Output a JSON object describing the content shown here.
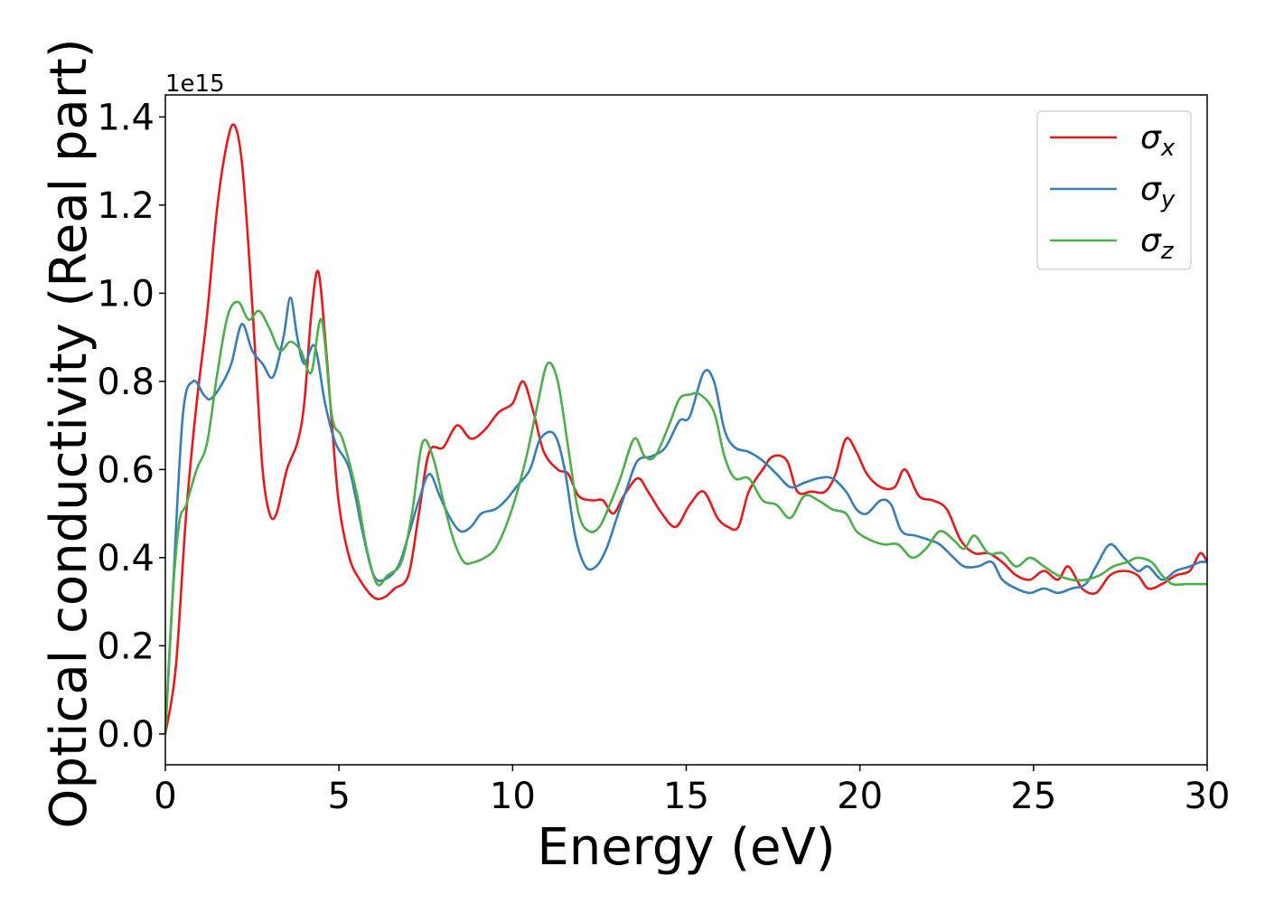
{
  "chart_data": {
    "type": "line",
    "xlabel": "Energy (eV)",
    "ylabel": "Optical conductivity (Real part)",
    "y_offset_text": "1e15",
    "xlim": [
      0,
      30
    ],
    "ylim": [
      -0.07,
      1.45
    ],
    "x_ticks": [
      0,
      5,
      10,
      15,
      20,
      25,
      30
    ],
    "x_tick_labels": [
      "0",
      "5",
      "10",
      "15",
      "20",
      "25",
      "30"
    ],
    "y_ticks": [
      0.0,
      0.2,
      0.4,
      0.6,
      0.8,
      1.0,
      1.2,
      1.4
    ],
    "y_tick_labels": [
      "0.0",
      "0.2",
      "0.4",
      "0.6",
      "0.8",
      "1.0",
      "1.2",
      "1.4"
    ],
    "grid": false,
    "legend_position": "top-right",
    "series": [
      {
        "name": "σx",
        "name_base": "σ",
        "name_sub": "x",
        "color": "#e41a1c",
        "points": [
          [
            0,
            0
          ],
          [
            0.3,
            0.15
          ],
          [
            0.6,
            0.5
          ],
          [
            0.9,
            0.75
          ],
          [
            1.2,
            0.95
          ],
          [
            1.5,
            1.2
          ],
          [
            1.8,
            1.35
          ],
          [
            2.0,
            1.38
          ],
          [
            2.2,
            1.3
          ],
          [
            2.4,
            1.1
          ],
          [
            2.6,
            0.85
          ],
          [
            2.8,
            0.6
          ],
          [
            3.0,
            0.5
          ],
          [
            3.2,
            0.5
          ],
          [
            3.5,
            0.6
          ],
          [
            3.8,
            0.66
          ],
          [
            4.0,
            0.75
          ],
          [
            4.2,
            0.95
          ],
          [
            4.4,
            1.05
          ],
          [
            4.6,
            0.9
          ],
          [
            4.8,
            0.7
          ],
          [
            5.0,
            0.52
          ],
          [
            5.3,
            0.4
          ],
          [
            5.6,
            0.35
          ],
          [
            6.0,
            0.31
          ],
          [
            6.3,
            0.31
          ],
          [
            6.6,
            0.33
          ],
          [
            7.0,
            0.36
          ],
          [
            7.3,
            0.5
          ],
          [
            7.6,
            0.64
          ],
          [
            8.0,
            0.65
          ],
          [
            8.4,
            0.7
          ],
          [
            8.8,
            0.67
          ],
          [
            9.2,
            0.69
          ],
          [
            9.6,
            0.73
          ],
          [
            10.0,
            0.75
          ],
          [
            10.3,
            0.8
          ],
          [
            10.6,
            0.73
          ],
          [
            10.9,
            0.64
          ],
          [
            11.3,
            0.6
          ],
          [
            11.6,
            0.59
          ],
          [
            11.9,
            0.54
          ],
          [
            12.3,
            0.53
          ],
          [
            12.6,
            0.53
          ],
          [
            12.9,
            0.5
          ],
          [
            13.2,
            0.54
          ],
          [
            13.6,
            0.58
          ],
          [
            13.9,
            0.55
          ],
          [
            14.3,
            0.5
          ],
          [
            14.7,
            0.47
          ],
          [
            15.1,
            0.52
          ],
          [
            15.5,
            0.55
          ],
          [
            15.9,
            0.49
          ],
          [
            16.2,
            0.47
          ],
          [
            16.5,
            0.47
          ],
          [
            16.8,
            0.55
          ],
          [
            17.2,
            0.6
          ],
          [
            17.5,
            0.63
          ],
          [
            17.9,
            0.62
          ],
          [
            18.2,
            0.55
          ],
          [
            18.6,
            0.55
          ],
          [
            19.0,
            0.55
          ],
          [
            19.3,
            0.59
          ],
          [
            19.6,
            0.67
          ],
          [
            19.9,
            0.64
          ],
          [
            20.2,
            0.59
          ],
          [
            20.6,
            0.56
          ],
          [
            21.0,
            0.56
          ],
          [
            21.3,
            0.6
          ],
          [
            21.7,
            0.54
          ],
          [
            22.1,
            0.53
          ],
          [
            22.5,
            0.51
          ],
          [
            22.9,
            0.44
          ],
          [
            23.3,
            0.41
          ],
          [
            23.7,
            0.41
          ],
          [
            24.1,
            0.39
          ],
          [
            24.5,
            0.36
          ],
          [
            24.9,
            0.35
          ],
          [
            25.3,
            0.37
          ],
          [
            25.7,
            0.35
          ],
          [
            26.0,
            0.38
          ],
          [
            26.4,
            0.33
          ],
          [
            26.8,
            0.32
          ],
          [
            27.2,
            0.36
          ],
          [
            27.6,
            0.37
          ],
          [
            28.0,
            0.36
          ],
          [
            28.3,
            0.33
          ],
          [
            28.7,
            0.34
          ],
          [
            29.1,
            0.36
          ],
          [
            29.5,
            0.37
          ],
          [
            29.8,
            0.41
          ],
          [
            30.0,
            0.39
          ]
        ]
      },
      {
        "name": "σy",
        "name_base": "σ",
        "name_sub": "y",
        "color": "#377eb8",
        "points": [
          [
            0,
            0
          ],
          [
            0.2,
            0.3
          ],
          [
            0.5,
            0.72
          ],
          [
            0.8,
            0.8
          ],
          [
            1.1,
            0.77
          ],
          [
            1.3,
            0.76
          ],
          [
            1.6,
            0.79
          ],
          [
            1.9,
            0.84
          ],
          [
            2.2,
            0.93
          ],
          [
            2.5,
            0.87
          ],
          [
            2.8,
            0.84
          ],
          [
            3.1,
            0.81
          ],
          [
            3.4,
            0.9
          ],
          [
            3.6,
            0.99
          ],
          [
            3.8,
            0.9
          ],
          [
            4.0,
            0.84
          ],
          [
            4.3,
            0.88
          ],
          [
            4.6,
            0.75
          ],
          [
            4.9,
            0.66
          ],
          [
            5.3,
            0.6
          ],
          [
            5.7,
            0.45
          ],
          [
            6.0,
            0.36
          ],
          [
            6.3,
            0.35
          ],
          [
            6.7,
            0.38
          ],
          [
            7.0,
            0.45
          ],
          [
            7.3,
            0.53
          ],
          [
            7.6,
            0.59
          ],
          [
            7.9,
            0.54
          ],
          [
            8.2,
            0.49
          ],
          [
            8.5,
            0.46
          ],
          [
            8.8,
            0.47
          ],
          [
            9.1,
            0.5
          ],
          [
            9.5,
            0.51
          ],
          [
            9.8,
            0.53
          ],
          [
            10.1,
            0.56
          ],
          [
            10.5,
            0.6
          ],
          [
            10.8,
            0.67
          ],
          [
            11.2,
            0.68
          ],
          [
            11.5,
            0.6
          ],
          [
            11.8,
            0.45
          ],
          [
            12.1,
            0.38
          ],
          [
            12.4,
            0.38
          ],
          [
            12.7,
            0.42
          ],
          [
            13.0,
            0.49
          ],
          [
            13.3,
            0.56
          ],
          [
            13.6,
            0.62
          ],
          [
            14.0,
            0.63
          ],
          [
            14.4,
            0.65
          ],
          [
            14.8,
            0.71
          ],
          [
            15.1,
            0.72
          ],
          [
            15.5,
            0.82
          ],
          [
            15.8,
            0.8
          ],
          [
            16.1,
            0.69
          ],
          [
            16.4,
            0.65
          ],
          [
            16.8,
            0.64
          ],
          [
            17.2,
            0.62
          ],
          [
            17.6,
            0.59
          ],
          [
            18.0,
            0.56
          ],
          [
            18.4,
            0.57
          ],
          [
            18.8,
            0.58
          ],
          [
            19.2,
            0.58
          ],
          [
            19.6,
            0.55
          ],
          [
            19.9,
            0.51
          ],
          [
            20.2,
            0.5
          ],
          [
            20.6,
            0.53
          ],
          [
            20.9,
            0.52
          ],
          [
            21.2,
            0.46
          ],
          [
            21.6,
            0.45
          ],
          [
            22.0,
            0.44
          ],
          [
            22.3,
            0.43
          ],
          [
            22.7,
            0.4
          ],
          [
            23.0,
            0.38
          ],
          [
            23.4,
            0.38
          ],
          [
            23.8,
            0.39
          ],
          [
            24.1,
            0.35
          ],
          [
            24.5,
            0.33
          ],
          [
            24.9,
            0.32
          ],
          [
            25.3,
            0.33
          ],
          [
            25.7,
            0.32
          ],
          [
            26.1,
            0.33
          ],
          [
            26.5,
            0.34
          ],
          [
            26.8,
            0.38
          ],
          [
            27.2,
            0.43
          ],
          [
            27.6,
            0.4
          ],
          [
            28.0,
            0.37
          ],
          [
            28.3,
            0.38
          ],
          [
            28.7,
            0.35
          ],
          [
            29.1,
            0.37
          ],
          [
            29.5,
            0.38
          ],
          [
            29.8,
            0.39
          ],
          [
            30.0,
            0.39
          ]
        ]
      },
      {
        "name": "σz",
        "name_base": "σ",
        "name_sub": "z",
        "color": "#4daf4a",
        "points": [
          [
            0,
            0
          ],
          [
            0.2,
            0.3
          ],
          [
            0.4,
            0.48
          ],
          [
            0.6,
            0.52
          ],
          [
            0.9,
            0.6
          ],
          [
            1.2,
            0.66
          ],
          [
            1.5,
            0.82
          ],
          [
            1.8,
            0.95
          ],
          [
            2.1,
            0.98
          ],
          [
            2.4,
            0.94
          ],
          [
            2.7,
            0.96
          ],
          [
            3.0,
            0.92
          ],
          [
            3.3,
            0.87
          ],
          [
            3.6,
            0.89
          ],
          [
            3.9,
            0.87
          ],
          [
            4.2,
            0.82
          ],
          [
            4.5,
            0.94
          ],
          [
            4.8,
            0.72
          ],
          [
            5.1,
            0.67
          ],
          [
            5.5,
            0.55
          ],
          [
            5.8,
            0.42
          ],
          [
            6.1,
            0.34
          ],
          [
            6.4,
            0.36
          ],
          [
            6.8,
            0.39
          ],
          [
            7.1,
            0.5
          ],
          [
            7.4,
            0.66
          ],
          [
            7.7,
            0.63
          ],
          [
            8.0,
            0.53
          ],
          [
            8.3,
            0.44
          ],
          [
            8.6,
            0.39
          ],
          [
            8.9,
            0.39
          ],
          [
            9.2,
            0.4
          ],
          [
            9.5,
            0.42
          ],
          [
            9.8,
            0.47
          ],
          [
            10.1,
            0.54
          ],
          [
            10.4,
            0.63
          ],
          [
            10.7,
            0.74
          ],
          [
            11.0,
            0.84
          ],
          [
            11.3,
            0.8
          ],
          [
            11.6,
            0.65
          ],
          [
            11.9,
            0.5
          ],
          [
            12.2,
            0.46
          ],
          [
            12.5,
            0.47
          ],
          [
            12.8,
            0.52
          ],
          [
            13.1,
            0.58
          ],
          [
            13.5,
            0.67
          ],
          [
            13.8,
            0.63
          ],
          [
            14.1,
            0.63
          ],
          [
            14.5,
            0.7
          ],
          [
            14.8,
            0.76
          ],
          [
            15.1,
            0.77
          ],
          [
            15.4,
            0.77
          ],
          [
            15.8,
            0.73
          ],
          [
            16.1,
            0.63
          ],
          [
            16.4,
            0.58
          ],
          [
            16.8,
            0.58
          ],
          [
            17.2,
            0.53
          ],
          [
            17.6,
            0.52
          ],
          [
            18.0,
            0.49
          ],
          [
            18.4,
            0.54
          ],
          [
            18.8,
            0.53
          ],
          [
            19.2,
            0.51
          ],
          [
            19.6,
            0.5
          ],
          [
            19.9,
            0.46
          ],
          [
            20.3,
            0.44
          ],
          [
            20.7,
            0.43
          ],
          [
            21.1,
            0.43
          ],
          [
            21.5,
            0.4
          ],
          [
            21.9,
            0.42
          ],
          [
            22.3,
            0.46
          ],
          [
            22.7,
            0.44
          ],
          [
            23.0,
            0.42
          ],
          [
            23.3,
            0.45
          ],
          [
            23.7,
            0.41
          ],
          [
            24.1,
            0.41
          ],
          [
            24.5,
            0.38
          ],
          [
            24.9,
            0.4
          ],
          [
            25.3,
            0.38
          ],
          [
            25.7,
            0.36
          ],
          [
            26.1,
            0.35
          ],
          [
            26.5,
            0.35
          ],
          [
            26.9,
            0.36
          ],
          [
            27.3,
            0.38
          ],
          [
            27.7,
            0.39
          ],
          [
            28.0,
            0.4
          ],
          [
            28.4,
            0.39
          ],
          [
            28.7,
            0.36
          ],
          [
            29.0,
            0.34
          ],
          [
            29.4,
            0.34
          ],
          [
            29.8,
            0.34
          ],
          [
            30.0,
            0.34
          ]
        ]
      }
    ]
  }
}
